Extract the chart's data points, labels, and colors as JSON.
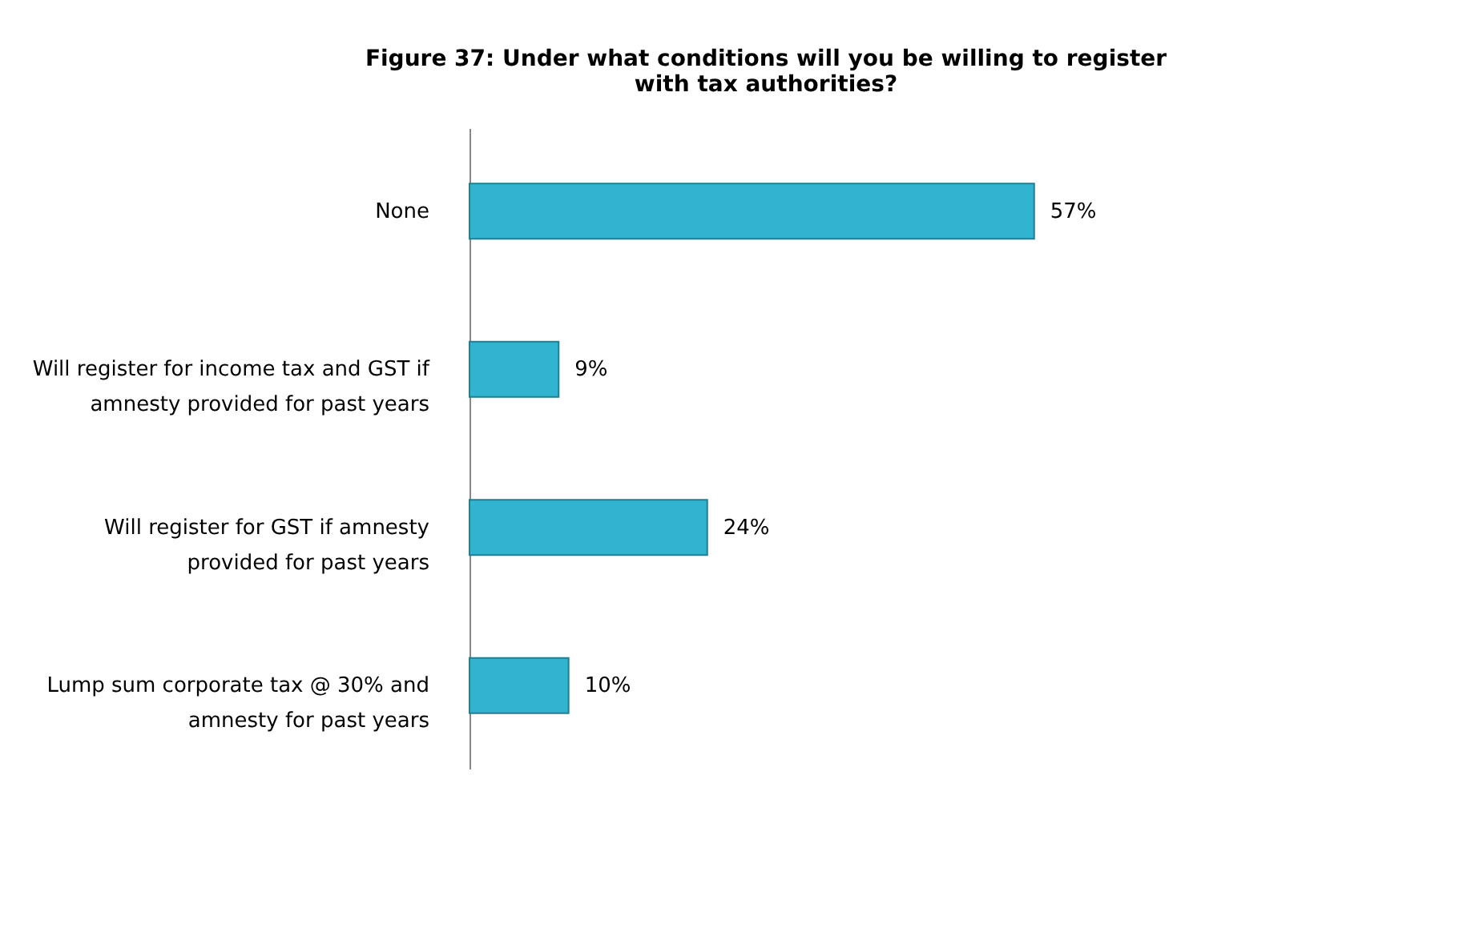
{
  "chart_data": {
    "type": "bar",
    "orientation": "horizontal",
    "title": "Figure 37: Under what conditions will you be willing to register with tax authorities?",
    "categories": [
      "None",
      "Will register for income tax and GST if amnesty provided for past years",
      "Will register for GST if amnesty provided for past years",
      "Lump sum corporate tax @ 30% and amnesty for past years"
    ],
    "values": [
      57,
      9,
      24,
      10
    ],
    "value_labels": [
      "57%",
      "9%",
      "24%",
      "10%"
    ],
    "color": "#31b4cf"
  }
}
